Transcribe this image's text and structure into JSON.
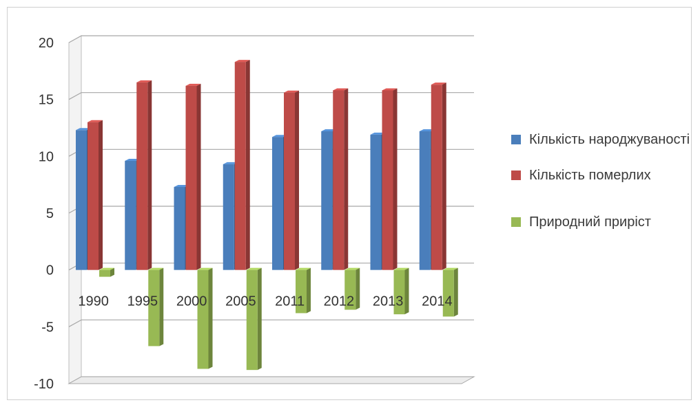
{
  "chart_data": {
    "type": "bar",
    "categories": [
      "1990",
      "1995",
      "2000",
      "2005",
      "2011",
      "2012",
      "2013",
      "2014"
    ],
    "series": [
      {
        "name": "Кількість народжуваності",
        "color": "#4a7ebb",
        "values": [
          12.3,
          9.6,
          7.3,
          9.3,
          11.7,
          12.2,
          11.9,
          12.2
        ]
      },
      {
        "name": "Кількість померлих",
        "color": "#be4b48",
        "values": [
          13.0,
          16.5,
          16.2,
          18.3,
          15.6,
          15.8,
          15.8,
          16.3
        ]
      },
      {
        "name": "Природний приріст",
        "color": "#98b954",
        "values": [
          -0.6,
          -6.7,
          -8.7,
          -8.8,
          -3.8,
          -3.5,
          -3.9,
          -4.1
        ]
      }
    ],
    "ylim": [
      -10,
      20
    ],
    "yticks": [
      "20",
      "15",
      "10",
      "5",
      "0",
      "-5",
      "-10"
    ],
    "grid": true,
    "legend_position": "right"
  }
}
